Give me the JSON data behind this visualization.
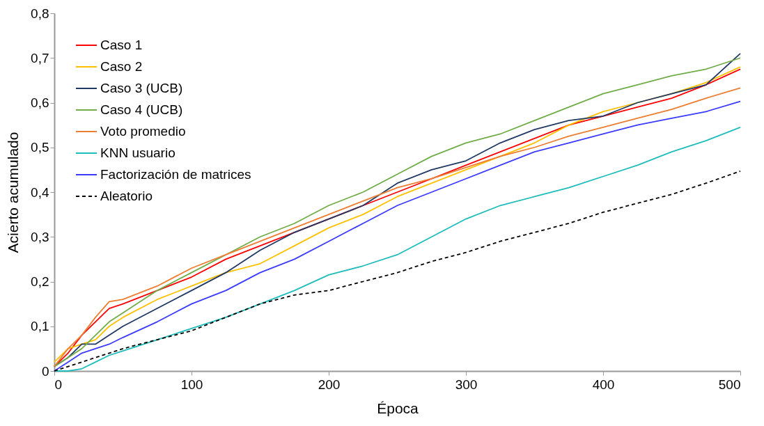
{
  "chart_data": {
    "type": "line",
    "xlabel": "Época",
    "ylabel": "Acierto acumulado",
    "x": [
      0,
      10,
      20,
      30,
      40,
      50,
      75,
      100,
      125,
      150,
      175,
      200,
      225,
      250,
      275,
      300,
      325,
      350,
      375,
      400,
      425,
      450,
      475,
      500
    ],
    "xlim": [
      0,
      500
    ],
    "xticks": [
      0,
      100,
      200,
      300,
      400,
      500
    ],
    "ylim": [
      0,
      0.8
    ],
    "yticks": [
      {
        "value": 0,
        "label": "0"
      },
      {
        "value": 0.1,
        "label": "0,1"
      },
      {
        "value": 0.2,
        "label": "0,2"
      },
      {
        "value": 0.3,
        "label": "0,3"
      },
      {
        "value": 0.4,
        "label": "0,4"
      },
      {
        "value": 0.5,
        "label": "0,5"
      },
      {
        "value": 0.6,
        "label": "0,6"
      },
      {
        "value": 0.7,
        "label": "0,7"
      },
      {
        "value": 0.8,
        "label": "0,8"
      }
    ],
    "grid": false,
    "legend": "top left",
    "marker": "none",
    "line_style": "solid",
    "series": [
      {
        "name": "Caso 1",
        "color": "#ff0000",
        "values": [
          0.01,
          0.04,
          0.08,
          0.11,
          0.14,
          0.15,
          0.18,
          0.21,
          0.25,
          0.28,
          0.31,
          0.34,
          0.37,
          0.4,
          0.43,
          0.46,
          0.49,
          0.52,
          0.55,
          0.57,
          0.59,
          0.61,
          0.64,
          0.675
        ]
      },
      {
        "name": "Caso 2",
        "color": "#ffc000",
        "values": [
          0.02,
          0.05,
          0.06,
          0.07,
          0.1,
          0.12,
          0.16,
          0.19,
          0.22,
          0.24,
          0.28,
          0.32,
          0.35,
          0.39,
          0.42,
          0.45,
          0.48,
          0.51,
          0.55,
          0.58,
          0.6,
          0.62,
          0.645,
          0.68
        ]
      },
      {
        "name": "Caso 3 (UCB)",
        "color": "#203864",
        "values": [
          0.01,
          0.03,
          0.06,
          0.06,
          0.08,
          0.1,
          0.14,
          0.18,
          0.22,
          0.27,
          0.31,
          0.34,
          0.37,
          0.42,
          0.45,
          0.47,
          0.51,
          0.54,
          0.56,
          0.57,
          0.6,
          0.62,
          0.64,
          0.71
        ]
      },
      {
        "name": "Caso 4 (UCB)",
        "color": "#70ad47",
        "values": [
          0.01,
          0.03,
          0.05,
          0.08,
          0.11,
          0.13,
          0.18,
          0.22,
          0.26,
          0.3,
          0.33,
          0.37,
          0.4,
          0.44,
          0.48,
          0.51,
          0.53,
          0.56,
          0.59,
          0.62,
          0.64,
          0.66,
          0.675,
          0.7
        ]
      },
      {
        "name": "Voto promedio",
        "color": "#ed7d31",
        "values": [
          0.01,
          0.05,
          0.08,
          0.12,
          0.155,
          0.16,
          0.19,
          0.23,
          0.26,
          0.29,
          0.32,
          0.35,
          0.38,
          0.41,
          0.43,
          0.455,
          0.48,
          0.5,
          0.525,
          0.545,
          0.565,
          0.585,
          0.61,
          0.633
        ]
      },
      {
        "name": "KNN usuario",
        "color": "#1fbcbc",
        "values": [
          0,
          0,
          0.005,
          0.02,
          0.035,
          0.045,
          0.07,
          0.095,
          0.12,
          0.15,
          0.18,
          0.215,
          0.235,
          0.26,
          0.3,
          0.34,
          0.37,
          0.39,
          0.41,
          0.435,
          0.46,
          0.49,
          0.515,
          0.545
        ]
      },
      {
        "name": "Factorización de matrices",
        "color": "#3b3bff",
        "values": [
          0,
          0.02,
          0.04,
          0.05,
          0.06,
          0.075,
          0.11,
          0.15,
          0.18,
          0.22,
          0.25,
          0.29,
          0.33,
          0.37,
          0.4,
          0.43,
          0.46,
          0.49,
          0.51,
          0.53,
          0.55,
          0.565,
          0.58,
          0.603
        ]
      },
      {
        "name": "Aleatorio",
        "color": "#000000",
        "line_style": "dashed",
        "values": [
          0,
          0.01,
          0.02,
          0.03,
          0.04,
          0.05,
          0.07,
          0.09,
          0.12,
          0.15,
          0.17,
          0.18,
          0.2,
          0.22,
          0.245,
          0.265,
          0.29,
          0.31,
          0.33,
          0.355,
          0.375,
          0.395,
          0.42,
          0.447
        ]
      }
    ]
  }
}
